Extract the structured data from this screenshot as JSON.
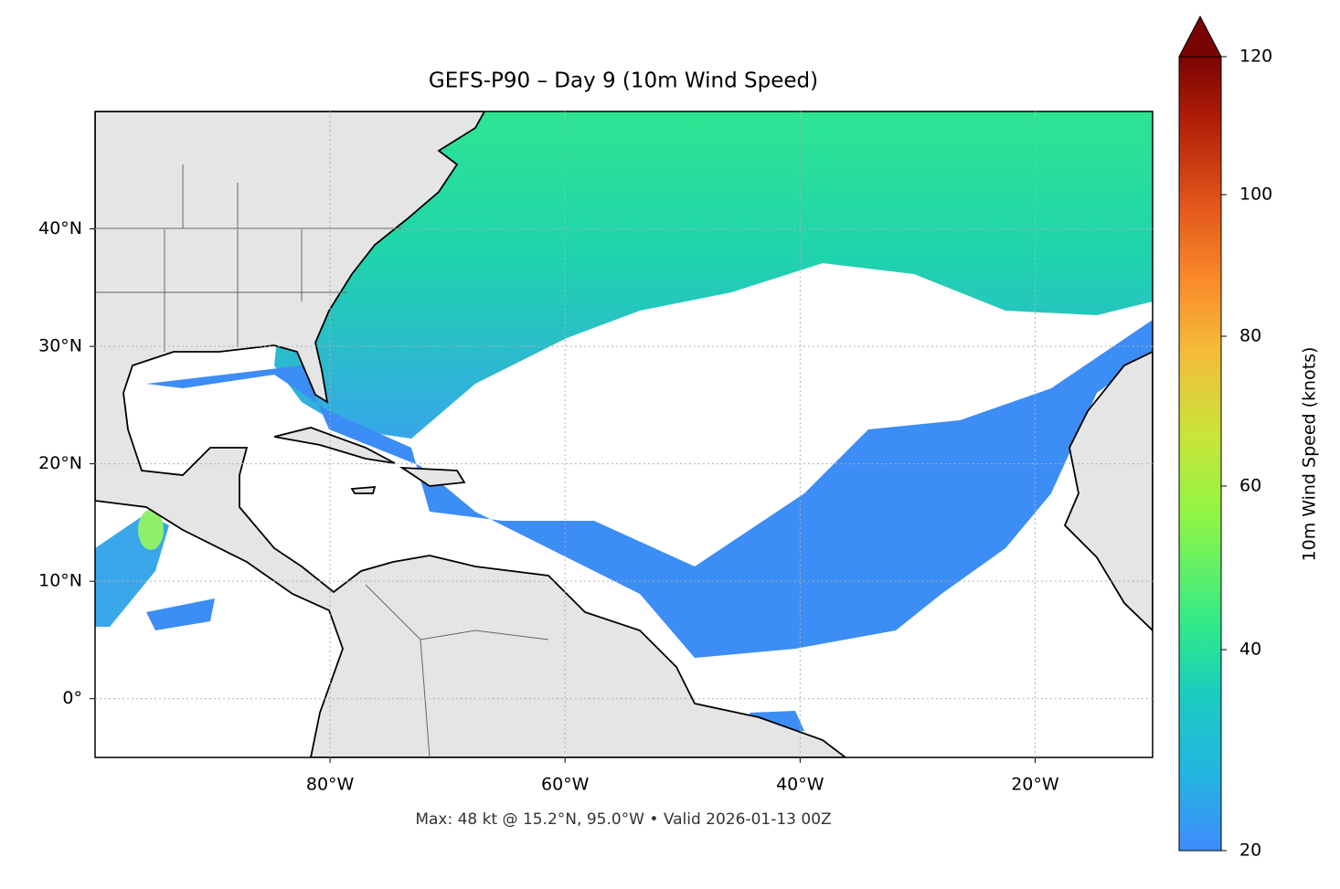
{
  "chart_data": {
    "type": "map",
    "title": "GEFS-P90 – Day 9 (10m Wind Speed)",
    "annotation": "Max: 48 kt @ 15.2°N, 95.0°W • Valid 2026-01-13 00Z",
    "xlim": [
      -100,
      -10
    ],
    "ylim": [
      -5,
      50
    ],
    "xticks": [
      {
        "value": -80,
        "label": "80°W"
      },
      {
        "value": -60,
        "label": "60°W"
      },
      {
        "value": -40,
        "label": "40°W"
      },
      {
        "value": -20,
        "label": "20°W"
      }
    ],
    "yticks": [
      {
        "value": 0,
        "label": "0°"
      },
      {
        "value": 10,
        "label": "10°N"
      },
      {
        "value": 20,
        "label": "20°N"
      },
      {
        "value": 30,
        "label": "30°N"
      },
      {
        "value": 40,
        "label": "40°N"
      }
    ],
    "grid": true,
    "colorbar": {
      "label": "10m Wind Speed (knots)",
      "ticks": [
        20,
        40,
        60,
        80,
        100,
        120
      ]
    }
  }
}
